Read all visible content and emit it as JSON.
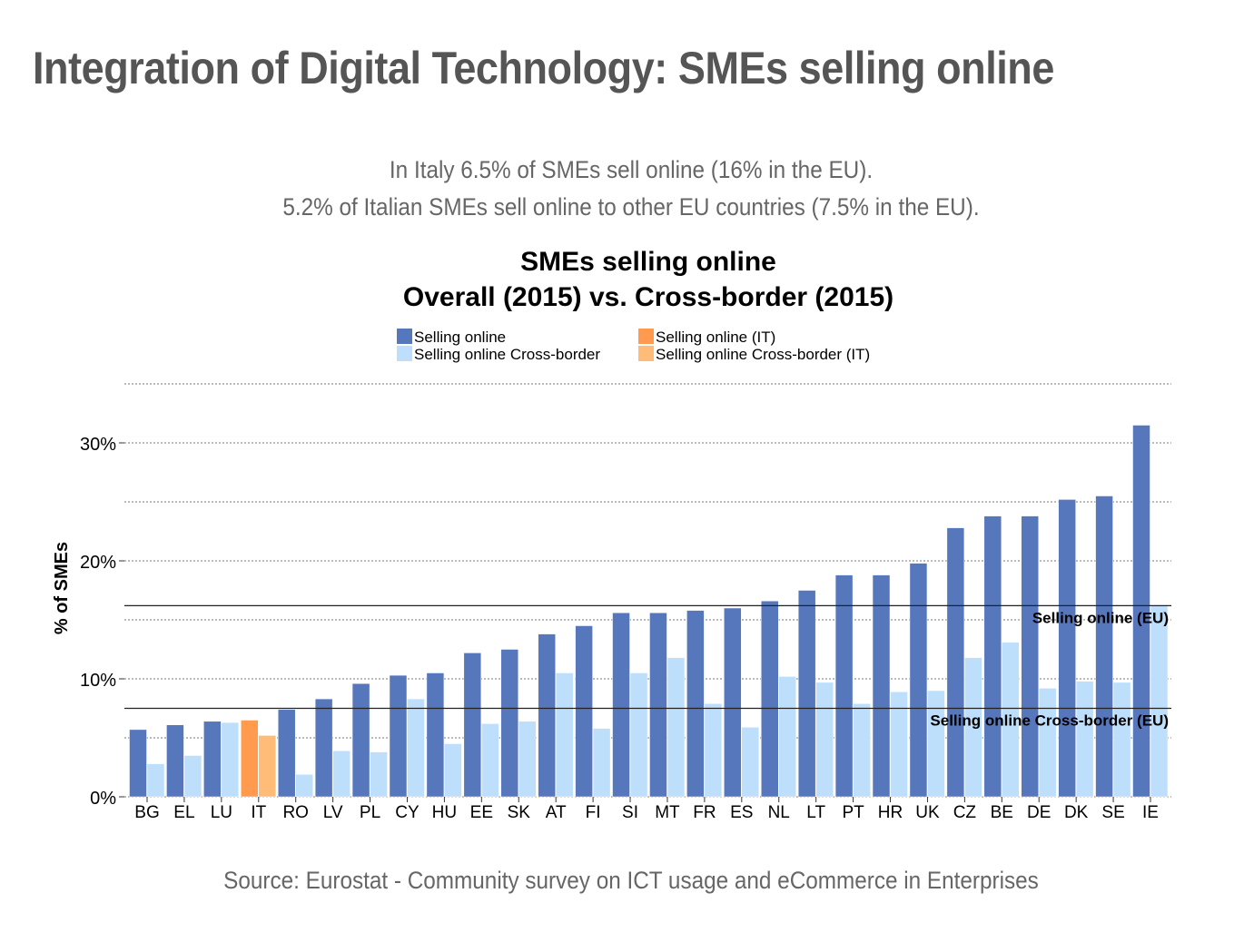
{
  "header": {
    "title": "Integration of Digital Technology: SMEs selling online",
    "subtitle_line1": "In Italy 6.5% of SMEs sell online (16% in the EU).",
    "subtitle_line2": "5.2% of Italian SMEs sell online to other EU countries (7.5% in the EU)."
  },
  "footer": {
    "source": "Source: Eurostat - Community survey on ICT usage and eCommerce in Enterprises"
  },
  "chart_data": {
    "type": "bar",
    "title_line1": "SMEs selling online",
    "title_line2": "Overall (2015) vs. Cross-border (2015)",
    "xlabel": "",
    "ylabel": "% of SMEs",
    "ylim": [
      0,
      35
    ],
    "yticks": [
      0,
      10,
      20,
      30
    ],
    "ytick_labels": [
      "0%",
      "10%",
      "20%",
      "30%"
    ],
    "grid": true,
    "legend_position": "top",
    "legend": [
      {
        "label": "Selling online",
        "color": "#5677BC"
      },
      {
        "label": "Selling online Cross-border",
        "color": "#BDDFFB"
      },
      {
        "label": "Selling online (IT)",
        "color": "#FF9A4F"
      },
      {
        "label": "Selling online Cross-border (IT)",
        "color": "#FFBB77"
      }
    ],
    "highlight": "IT",
    "categories": [
      "BG",
      "EL",
      "LU",
      "IT",
      "RO",
      "LV",
      "PL",
      "CY",
      "HU",
      "EE",
      "SK",
      "AT",
      "FI",
      "SI",
      "MT",
      "FR",
      "ES",
      "NL",
      "LT",
      "PT",
      "HR",
      "UK",
      "CZ",
      "BE",
      "DE",
      "DK",
      "SE",
      "IE"
    ],
    "series": [
      {
        "name": "Selling online",
        "values": [
          5.7,
          6.1,
          6.4,
          6.5,
          7.4,
          8.3,
          9.6,
          10.3,
          10.5,
          12.2,
          12.5,
          13.8,
          14.5,
          15.6,
          15.6,
          15.8,
          16.0,
          16.6,
          17.5,
          18.8,
          18.8,
          19.8,
          22.8,
          23.8,
          23.8,
          25.2,
          25.5,
          31.5
        ]
      },
      {
        "name": "Selling online Cross-border",
        "values": [
          2.8,
          3.5,
          6.3,
          5.2,
          1.9,
          3.9,
          3.8,
          8.3,
          4.5,
          6.2,
          6.4,
          10.5,
          5.8,
          10.5,
          11.8,
          7.9,
          5.9,
          10.2,
          9.7,
          7.9,
          8.9,
          9.0,
          11.8,
          13.1,
          9.2,
          9.8,
          9.7,
          16.2
        ]
      }
    ],
    "reference_lines": [
      {
        "label": "Selling online (EU)",
        "value": 16.2
      },
      {
        "label": "Selling online Cross-border (EU)",
        "value": 7.5
      }
    ]
  }
}
